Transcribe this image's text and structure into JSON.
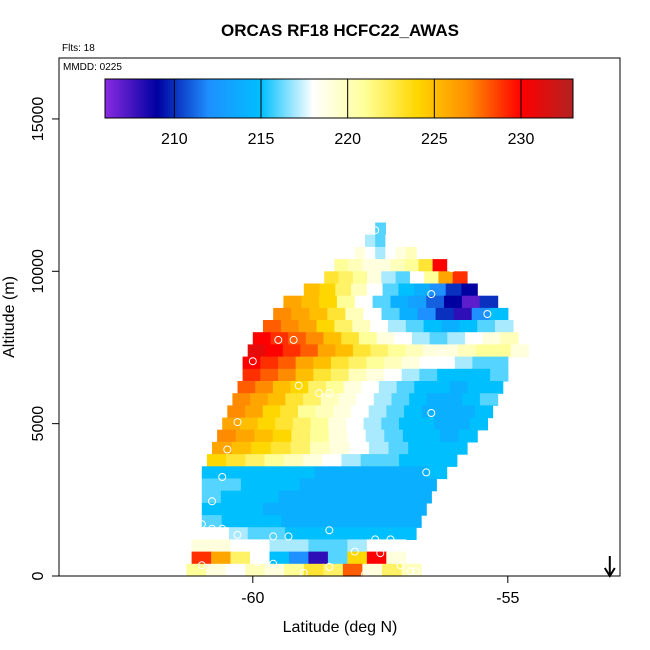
{
  "chart_data": {
    "type": "heatmap",
    "title": "ORCAS RF18 HCFC22_AWAS",
    "flights_label": "Flts: 18",
    "date_label": "MMDD: 0225",
    "xlabel": "Latitude (deg N)",
    "ylabel": "Altitude (m)",
    "xlim": [
      -63.8,
      -52.8
    ],
    "ylim": [
      0,
      17000
    ],
    "x_ticks": [
      -60,
      -55
    ],
    "x_tick_labels": [
      "-60",
      "-55"
    ],
    "y_ticks": [
      0,
      5000,
      10000,
      15000
    ],
    "y_tick_labels": [
      "0",
      "5000",
      "10000",
      "15000"
    ],
    "colorbar": {
      "min": 206,
      "max": 233,
      "ticks": [
        210,
        215,
        220,
        225,
        230
      ],
      "tick_labels": [
        "210",
        "215",
        "220",
        "225",
        "230"
      ],
      "colors": [
        "#8a2be2",
        "#0000a0",
        "#1e90ff",
        "#00bfff",
        "#ffffff",
        "#ffff99",
        "#ffd700",
        "#ff8c00",
        "#ff0000",
        "#b22222"
      ]
    },
    "arrow_latitude": -53.0,
    "curtain_rows": [
      {
        "alt": 11400,
        "x0": -57.6,
        "x1": -57.4,
        "v": [
          216
        ]
      },
      {
        "alt": 11000,
        "x0": -57.8,
        "x1": -57.2,
        "v": [
          217,
          216,
          218
        ]
      },
      {
        "alt": 10600,
        "x0": -58.0,
        "x1": -56.8,
        "v": [
          219,
          218,
          217,
          218,
          219,
          220
        ]
      },
      {
        "alt": 10200,
        "x0": -58.4,
        "x1": -56.2,
        "v": [
          221,
          220,
          219,
          219,
          220,
          221,
          223,
          230
        ]
      },
      {
        "alt": 9800,
        "x0": -58.6,
        "x1": -55.8,
        "v": [
          223,
          222,
          221,
          219,
          217,
          216,
          218,
          221,
          226,
          229
        ]
      },
      {
        "alt": 9400,
        "x0": -59.0,
        "x1": -55.6,
        "v": [
          225,
          224,
          222,
          220,
          218,
          216,
          215,
          214,
          212,
          210,
          209
        ]
      },
      {
        "alt": 9000,
        "x0": -59.4,
        "x1": -55.2,
        "v": [
          226,
          225,
          224,
          221,
          218,
          216,
          214,
          213,
          211,
          209,
          207,
          210
        ]
      },
      {
        "alt": 8600,
        "x0": -59.6,
        "x1": -55.0,
        "v": [
          227,
          226,
          225,
          223,
          220,
          218,
          216,
          214,
          212,
          210,
          208,
          212,
          215
        ]
      },
      {
        "alt": 8200,
        "x0": -59.8,
        "x1": -54.9,
        "v": [
          228,
          227,
          226,
          224,
          222,
          220,
          218,
          217,
          216,
          215,
          214,
          215,
          216,
          217
        ]
      },
      {
        "alt": 7800,
        "x0": -60.0,
        "x1": -54.8,
        "v": [
          230,
          229,
          228,
          227,
          225,
          223,
          221,
          219,
          218,
          217,
          216,
          217,
          218,
          219,
          220
        ]
      },
      {
        "alt": 7400,
        "x0": -60.1,
        "x1": -54.6,
        "v": [
          231,
          230,
          229,
          228,
          226,
          225,
          223,
          222,
          221,
          220,
          219,
          219,
          220,
          221,
          221,
          219
        ]
      },
      {
        "alt": 7000,
        "x0": -60.2,
        "x1": -55.0,
        "v": [
          230,
          229,
          228,
          226,
          225,
          223,
          222,
          221,
          220,
          219,
          218,
          218,
          217,
          216,
          216
        ]
      },
      {
        "alt": 6600,
        "x0": -60.2,
        "x1": -55.0,
        "v": [
          229,
          228,
          227,
          225,
          223,
          222,
          220,
          219,
          218,
          217,
          216,
          215,
          215,
          215,
          216
        ]
      },
      {
        "alt": 6200,
        "x0": -60.3,
        "x1": -55.1,
        "v": [
          228,
          227,
          225,
          224,
          222,
          221,
          219,
          218,
          217,
          216,
          215,
          215,
          214,
          215,
          215
        ]
      },
      {
        "alt": 5800,
        "x0": -60.4,
        "x1": -55.2,
        "v": [
          227,
          226,
          225,
          223,
          222,
          220,
          219,
          218,
          217,
          216,
          215,
          214,
          214,
          215,
          216
        ]
      },
      {
        "alt": 5400,
        "x0": -60.5,
        "x1": -55.3,
        "v": [
          227,
          226,
          224,
          223,
          221,
          220,
          219,
          218,
          217,
          216,
          215,
          214,
          214,
          214,
          215
        ]
      },
      {
        "alt": 5000,
        "x0": -60.6,
        "x1": -55.4,
        "v": [
          226,
          225,
          224,
          223,
          222,
          221,
          219,
          218,
          217,
          216,
          215,
          215,
          214,
          214,
          215
        ]
      },
      {
        "alt": 4600,
        "x0": -60.7,
        "x1": -55.6,
        "v": [
          227,
          226,
          225,
          224,
          222,
          221,
          219,
          218,
          217,
          216,
          215,
          215,
          214,
          215
        ]
      },
      {
        "alt": 4200,
        "x0": -60.8,
        "x1": -55.8,
        "v": [
          226,
          225,
          224,
          223,
          222,
          220,
          219,
          218,
          217,
          216,
          215,
          215,
          215
        ]
      },
      {
        "alt": 3800,
        "x0": -60.9,
        "x1": -56.0,
        "v": [
          224,
          223,
          222,
          221,
          220,
          219,
          218,
          217,
          216,
          216,
          215,
          215,
          215
        ]
      },
      {
        "alt": 3400,
        "x0": -61.0,
        "x1": -56.2,
        "v": [
          215,
          215,
          215,
          215,
          215,
          215,
          214,
          214,
          214,
          214,
          214,
          214,
          215
        ]
      },
      {
        "alt": 3000,
        "x0": -61.0,
        "x1": -56.4,
        "v": [
          216,
          216,
          215,
          215,
          215,
          214,
          214,
          214,
          214,
          214,
          214,
          214
        ]
      },
      {
        "alt": 2600,
        "x0": -61.0,
        "x1": -56.5,
        "v": [
          216,
          215,
          215,
          215,
          214,
          214,
          214,
          214,
          214,
          214,
          214,
          214
        ]
      },
      {
        "alt": 2200,
        "x0": -61.0,
        "x1": -56.6,
        "v": [
          215,
          215,
          215,
          214,
          214,
          214,
          214,
          214,
          214,
          214,
          214
        ]
      },
      {
        "alt": 1800,
        "x0": -61.0,
        "x1": -56.7,
        "v": [
          216,
          215,
          215,
          215,
          214,
          214,
          214,
          214,
          214,
          214,
          214
        ]
      },
      {
        "alt": 1400,
        "x0": -61.2,
        "x1": -56.8,
        "v": [
          218,
          218,
          217,
          216,
          216,
          215,
          215,
          215,
          215,
          215,
          215,
          215
        ]
      },
      {
        "alt": 1000,
        "x0": -61.2,
        "x1": -57.0,
        "v": [
          219,
          219,
          218,
          218,
          217,
          217,
          216,
          216,
          217,
          218,
          218
        ]
      },
      {
        "alt": 600,
        "x0": -61.2,
        "x1": -57.0,
        "v": [
          229,
          226,
          222,
          218,
          215,
          212,
          208,
          216,
          224,
          230,
          219
        ]
      },
      {
        "alt": 200,
        "x0": -61.3,
        "x1": -56.7,
        "v": [
          221,
          219,
          218,
          220,
          219,
          221,
          223,
          222,
          228,
          219,
          222,
          220
        ]
      }
    ],
    "sample_points": [
      {
        "lat": -57.6,
        "alt": 11350
      },
      {
        "lat": -56.1,
        "alt": 10100
      },
      {
        "lat": -56.5,
        "alt": 9250
      },
      {
        "lat": -55.4,
        "alt": 8600
      },
      {
        "lat": -59.5,
        "alt": 7750
      },
      {
        "lat": -59.2,
        "alt": 7750
      },
      {
        "lat": -56.3,
        "alt": 7300
      },
      {
        "lat": -60.0,
        "alt": 7050
      },
      {
        "lat": -59.1,
        "alt": 6250
      },
      {
        "lat": -58.7,
        "alt": 6000
      },
      {
        "lat": -58.5,
        "alt": 6000
      },
      {
        "lat": -56.5,
        "alt": 5350
      },
      {
        "lat": -60.3,
        "alt": 5050
      },
      {
        "lat": -60.5,
        "alt": 4150
      },
      {
        "lat": -56.6,
        "alt": 3400
      },
      {
        "lat": -60.6,
        "alt": 3250
      },
      {
        "lat": -60.8,
        "alt": 2450
      },
      {
        "lat": -61.0,
        "alt": 1700
      },
      {
        "lat": -60.8,
        "alt": 1550
      },
      {
        "lat": -60.6,
        "alt": 1550
      },
      {
        "lat": -60.3,
        "alt": 1350
      },
      {
        "lat": -59.6,
        "alt": 1300
      },
      {
        "lat": -59.3,
        "alt": 1300
      },
      {
        "lat": -58.5,
        "alt": 1500
      },
      {
        "lat": -57.6,
        "alt": 1200
      },
      {
        "lat": -57.3,
        "alt": 1200
      },
      {
        "lat": -56.6,
        "alt": 1550
      },
      {
        "lat": -58.0,
        "alt": 800
      },
      {
        "lat": -57.5,
        "alt": 750
      },
      {
        "lat": -59.9,
        "alt": 450
      },
      {
        "lat": -59.6,
        "alt": 400
      },
      {
        "lat": -61.0,
        "alt": 350
      },
      {
        "lat": -58.5,
        "alt": 300
      },
      {
        "lat": -57.1,
        "alt": 350
      },
      {
        "lat": -56.9,
        "alt": 150
      },
      {
        "lat": -56.8,
        "alt": 150
      },
      {
        "lat": -59.0,
        "alt": 100
      },
      {
        "lat": -57.8,
        "alt": 50
      }
    ]
  }
}
